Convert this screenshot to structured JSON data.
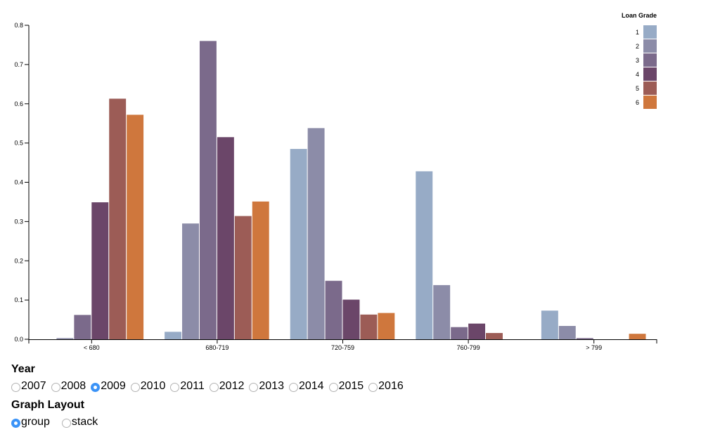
{
  "chart_data": {
    "type": "bar",
    "legend_title": "Loan Grade",
    "legend_placement": "top-right",
    "categories": [
      "< 680",
      "680-719",
      "720-759",
      "760-799",
      "> 799"
    ],
    "series": [
      {
        "name": "1",
        "color": "#97abc6",
        "values": [
          0.0,
          0.019,
          0.485,
          0.428,
          0.073
        ]
      },
      {
        "name": "2",
        "color": "#8c8ca8",
        "values": [
          0.003,
          0.295,
          0.538,
          0.138,
          0.034
        ]
      },
      {
        "name": "3",
        "color": "#7b6a8b",
        "values": [
          0.062,
          0.76,
          0.149,
          0.031,
          0.003
        ]
      },
      {
        "name": "4",
        "color": "#6b4669",
        "values": [
          0.349,
          0.515,
          0.101,
          0.04,
          0.0
        ]
      },
      {
        "name": "5",
        "color": "#9c5c56",
        "values": [
          0.613,
          0.314,
          0.063,
          0.016,
          0.0
        ]
      },
      {
        "name": "6",
        "color": "#cf773d",
        "values": [
          0.572,
          0.351,
          0.067,
          0.0,
          0.014
        ]
      }
    ],
    "yticks": [
      "0.0",
      "0.1",
      "0.2",
      "0.3",
      "0.4",
      "0.5",
      "0.6",
      "0.7",
      "0.8"
    ],
    "ylim": [
      0,
      0.8
    ],
    "grid": false,
    "xlabel": "",
    "ylabel": ""
  },
  "controls": {
    "year_title": "Year",
    "years": [
      "2007",
      "2008",
      "2009",
      "2010",
      "2011",
      "2012",
      "2013",
      "2014",
      "2015",
      "2016"
    ],
    "selected_year": "2009",
    "layout_title": "Graph Layout",
    "layouts": [
      "group",
      "stack"
    ],
    "selected_layout": "group"
  }
}
